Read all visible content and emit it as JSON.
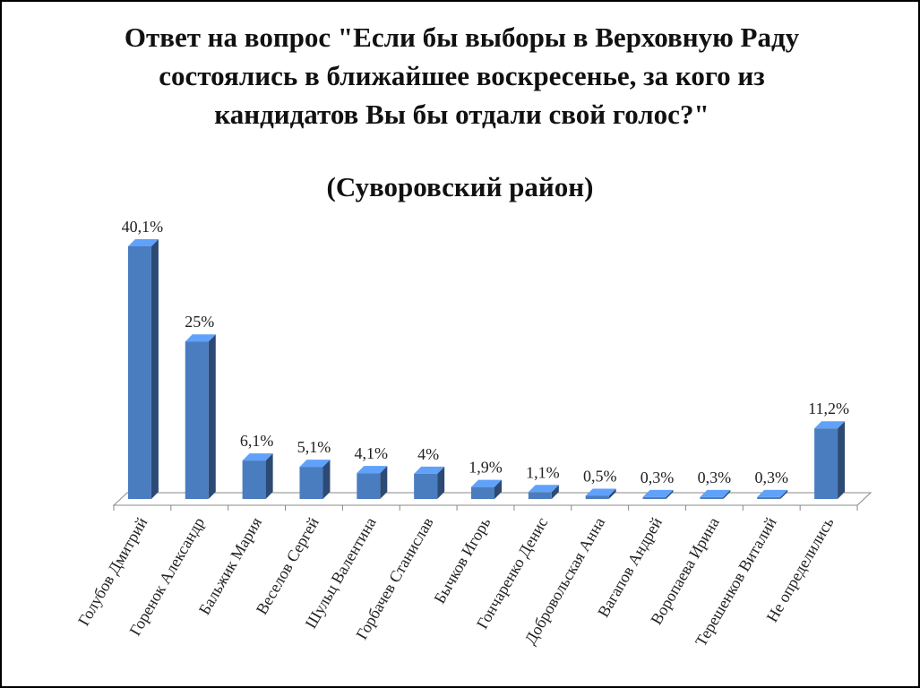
{
  "chart_data": {
    "type": "bar",
    "title": "Ответ на вопрос \"Если бы выборы в Верховную Раду состоялись в ближайшее воскресенье, за кого из кандидатов Вы бы отдали свой голос?\"",
    "subtitle": "(Суворовский район)",
    "categories": [
      "Голубов Дмитрий",
      "Горенок Александр",
      "Бальжик Мария",
      "Веселов Сергей",
      "Шульц Валентина",
      "Горбачев Станислав",
      "Бычков Игорь",
      "Гончаренко Денис",
      "Добровольская Анна",
      "Вагапов Андрей",
      "Воропаева Ирина",
      "Терешенков Виталий",
      "Не определились"
    ],
    "values": [
      40.1,
      25,
      6.1,
      5.1,
      4.1,
      4,
      1.9,
      1.1,
      0.5,
      0.3,
      0.3,
      0.3,
      11.2
    ],
    "value_labels": [
      "40,1%",
      "25%",
      "6,1%",
      "5,1%",
      "4,1%",
      "4%",
      "1,9%",
      "1,1%",
      "0,5%",
      "0,3%",
      "0,3%",
      "0,3%",
      "11,2%"
    ],
    "color": "#4a7cc0"
  }
}
